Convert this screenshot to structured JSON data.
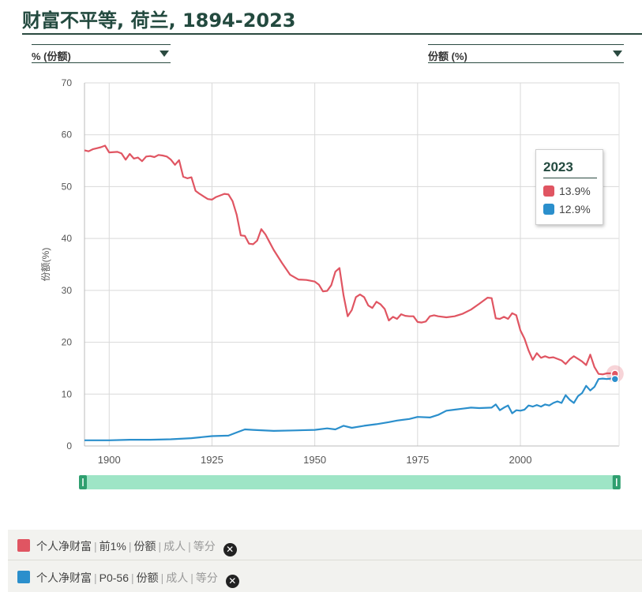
{
  "title": "财富不平等, 荷兰, 1894-2023",
  "controls": {
    "left_dropdown": "% (份额)",
    "right_dropdown": "份额 (%)"
  },
  "tooltip": {
    "year": "2023",
    "rows": [
      {
        "value": "13.9%",
        "color": "#e05562"
      },
      {
        "value": "12.9%",
        "color": "#2b8fcc"
      }
    ]
  },
  "legend": [
    {
      "color": "#e05562",
      "parts": [
        "个人净财富",
        "前1%",
        "份额"
      ],
      "dim_parts": [
        "成人",
        "等分"
      ],
      "remove_icon": "close-circle-icon"
    },
    {
      "color": "#2b8fcc",
      "parts": [
        "个人净财富",
        "P0-56",
        "份额"
      ],
      "dim_parts": [
        "成人",
        "等分"
      ],
      "remove_icon": "close-circle-icon"
    }
  ],
  "chart_data": {
    "type": "line",
    "ylabel": "份额(%)",
    "xlim": [
      1894,
      2024
    ],
    "ylim": [
      0,
      70
    ],
    "x_ticks": [
      1900,
      1925,
      1950,
      1975,
      2000
    ],
    "y_ticks": [
      0,
      10,
      20,
      30,
      40,
      50,
      60,
      70
    ],
    "grid": true,
    "range_slider": [
      1894,
      2023
    ],
    "series": [
      {
        "color": "#e05562",
        "points": [
          [
            1894,
            57.0
          ],
          [
            1895,
            56.8
          ],
          [
            1896,
            57.2
          ],
          [
            1897,
            57.4
          ],
          [
            1898,
            57.6
          ],
          [
            1899,
            57.9
          ],
          [
            1900,
            56.6
          ],
          [
            1902,
            56.7
          ],
          [
            1903,
            56.4
          ],
          [
            1904,
            55.2
          ],
          [
            1905,
            56.3
          ],
          [
            1906,
            55.4
          ],
          [
            1907,
            55.6
          ],
          [
            1908,
            54.9
          ],
          [
            1909,
            55.8
          ],
          [
            1910,
            55.9
          ],
          [
            1911,
            55.7
          ],
          [
            1912,
            56.1
          ],
          [
            1913,
            56.0
          ],
          [
            1914,
            55.8
          ],
          [
            1915,
            55.2
          ],
          [
            1916,
            54.2
          ],
          [
            1917,
            55.1
          ],
          [
            1918,
            51.9
          ],
          [
            1919,
            51.6
          ],
          [
            1920,
            51.8
          ],
          [
            1921,
            49.2
          ],
          [
            1922,
            48.6
          ],
          [
            1923,
            48.1
          ],
          [
            1924,
            47.6
          ],
          [
            1925,
            47.5
          ],
          [
            1926,
            48.0
          ],
          [
            1927,
            48.3
          ],
          [
            1928,
            48.6
          ],
          [
            1929,
            48.5
          ],
          [
            1930,
            47.2
          ],
          [
            1931,
            44.6
          ],
          [
            1932,
            40.6
          ],
          [
            1933,
            40.5
          ],
          [
            1934,
            39.0
          ],
          [
            1935,
            38.9
          ],
          [
            1936,
            39.6
          ],
          [
            1937,
            41.8
          ],
          [
            1938,
            40.8
          ],
          [
            1939,
            39.3
          ],
          [
            1940,
            37.8
          ],
          [
            1942,
            35.3
          ],
          [
            1944,
            33.0
          ],
          [
            1946,
            32.1
          ],
          [
            1948,
            32.0
          ],
          [
            1950,
            31.7
          ],
          [
            1951,
            31.1
          ],
          [
            1952,
            29.8
          ],
          [
            1953,
            29.9
          ],
          [
            1954,
            31.0
          ],
          [
            1955,
            33.6
          ],
          [
            1956,
            34.3
          ],
          [
            1957,
            29.0
          ],
          [
            1958,
            25.0
          ],
          [
            1959,
            26.2
          ],
          [
            1960,
            28.7
          ],
          [
            1961,
            29.2
          ],
          [
            1962,
            28.7
          ],
          [
            1963,
            27.1
          ],
          [
            1964,
            26.6
          ],
          [
            1965,
            27.8
          ],
          [
            1966,
            27.3
          ],
          [
            1967,
            26.4
          ],
          [
            1968,
            24.2
          ],
          [
            1969,
            24.9
          ],
          [
            1970,
            24.5
          ],
          [
            1971,
            25.4
          ],
          [
            1972,
            25.1
          ],
          [
            1973,
            25.0
          ],
          [
            1974,
            25.0
          ],
          [
            1975,
            23.9
          ],
          [
            1976,
            23.8
          ],
          [
            1977,
            24.0
          ],
          [
            1978,
            25.0
          ],
          [
            1979,
            25.2
          ],
          [
            1980,
            25.0
          ],
          [
            1982,
            24.8
          ],
          [
            1984,
            25.0
          ],
          [
            1986,
            25.5
          ],
          [
            1988,
            26.3
          ],
          [
            1990,
            27.4
          ],
          [
            1992,
            28.6
          ],
          [
            1993,
            28.5
          ],
          [
            1994,
            24.6
          ],
          [
            1995,
            24.5
          ],
          [
            1996,
            24.9
          ],
          [
            1997,
            24.5
          ],
          [
            1998,
            25.6
          ],
          [
            1999,
            25.2
          ],
          [
            2000,
            22.3
          ],
          [
            2001,
            20.7
          ],
          [
            2002,
            18.4
          ],
          [
            2003,
            16.6
          ],
          [
            2004,
            17.9
          ],
          [
            2005,
            17.0
          ],
          [
            2006,
            17.3
          ],
          [
            2007,
            17.0
          ],
          [
            2008,
            17.1
          ],
          [
            2009,
            16.8
          ],
          [
            2010,
            16.5
          ],
          [
            2011,
            15.8
          ],
          [
            2012,
            16.7
          ],
          [
            2013,
            17.3
          ],
          [
            2014,
            16.8
          ],
          [
            2015,
            16.3
          ],
          [
            2016,
            15.6
          ],
          [
            2017,
            17.6
          ],
          [
            2018,
            15.2
          ],
          [
            2019,
            13.9
          ],
          [
            2020,
            13.8
          ],
          [
            2021,
            14.0
          ],
          [
            2022,
            14.0
          ],
          [
            2023,
            13.9
          ]
        ]
      },
      {
        "color": "#2b8fcc",
        "points": [
          [
            1894,
            1.1
          ],
          [
            1900,
            1.1
          ],
          [
            1905,
            1.2
          ],
          [
            1910,
            1.2
          ],
          [
            1915,
            1.3
          ],
          [
            1920,
            1.5
          ],
          [
            1925,
            1.9
          ],
          [
            1929,
            2.0
          ],
          [
            1931,
            2.6
          ],
          [
            1933,
            3.2
          ],
          [
            1935,
            3.1
          ],
          [
            1940,
            2.9
          ],
          [
            1945,
            3.0
          ],
          [
            1950,
            3.1
          ],
          [
            1953,
            3.4
          ],
          [
            1955,
            3.2
          ],
          [
            1957,
            3.9
          ],
          [
            1959,
            3.5
          ],
          [
            1962,
            3.9
          ],
          [
            1965,
            4.2
          ],
          [
            1968,
            4.6
          ],
          [
            1970,
            4.9
          ],
          [
            1973,
            5.2
          ],
          [
            1975,
            5.6
          ],
          [
            1978,
            5.5
          ],
          [
            1980,
            6.0
          ],
          [
            1982,
            6.8
          ],
          [
            1984,
            7.0
          ],
          [
            1986,
            7.2
          ],
          [
            1988,
            7.4
          ],
          [
            1990,
            7.3
          ],
          [
            1993,
            7.4
          ],
          [
            1994,
            8.0
          ],
          [
            1995,
            6.9
          ],
          [
            1996,
            7.4
          ],
          [
            1997,
            7.8
          ],
          [
            1998,
            6.3
          ],
          [
            1999,
            6.9
          ],
          [
            2000,
            6.8
          ],
          [
            2001,
            7.0
          ],
          [
            2002,
            7.8
          ],
          [
            2003,
            7.6
          ],
          [
            2004,
            7.9
          ],
          [
            2005,
            7.6
          ],
          [
            2006,
            8.0
          ],
          [
            2007,
            7.8
          ],
          [
            2008,
            8.3
          ],
          [
            2009,
            8.6
          ],
          [
            2010,
            8.3
          ],
          [
            2011,
            9.8
          ],
          [
            2012,
            8.9
          ],
          [
            2013,
            8.3
          ],
          [
            2014,
            9.6
          ],
          [
            2015,
            10.2
          ],
          [
            2016,
            11.6
          ],
          [
            2017,
            10.7
          ],
          [
            2018,
            11.4
          ],
          [
            2019,
            12.9
          ],
          [
            2020,
            13.0
          ],
          [
            2021,
            12.9
          ],
          [
            2022,
            13.0
          ],
          [
            2023,
            12.9
          ]
        ]
      }
    ]
  }
}
